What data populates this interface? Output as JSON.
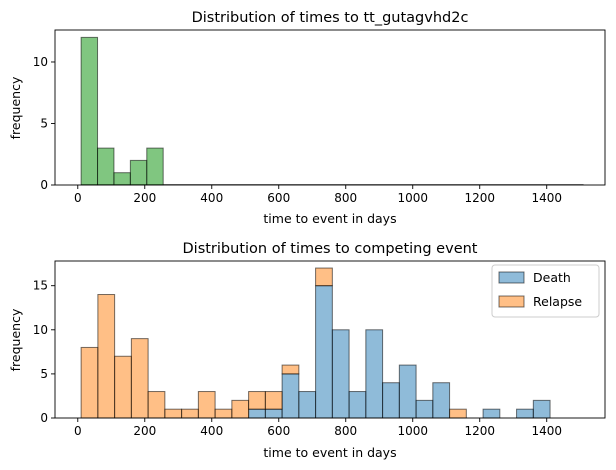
{
  "chart_data": [
    {
      "type": "bar",
      "title": "Distribution of times to tt_gutagvhd2c",
      "xlabel": "time to event in days",
      "ylabel": "frequency",
      "xlim": [
        -68,
        1574
      ],
      "ylim": [
        0,
        12.6
      ],
      "xticks": [
        "0",
        "200",
        "400",
        "600",
        "800",
        "1000",
        "1200",
        "1400"
      ],
      "yticks": [
        "0",
        "5",
        "10"
      ],
      "color": "#2ca02c",
      "bins": [
        {
          "x0": 10,
          "x1": 59,
          "value": 12
        },
        {
          "x0": 59,
          "x1": 108,
          "value": 3
        },
        {
          "x0": 108,
          "x1": 157,
          "value": 1
        },
        {
          "x0": 157,
          "x1": 206,
          "value": 2
        },
        {
          "x0": 206,
          "x1": 255,
          "value": 3
        }
      ],
      "baseline_range": [
        10,
        1510
      ]
    },
    {
      "type": "bar",
      "stacked": true,
      "title": "Distribution of times to competing event",
      "xlabel": "time to event in days",
      "ylabel": "frequency",
      "xlim": [
        -68,
        1574
      ],
      "ylim": [
        0,
        17.8
      ],
      "xticks": [
        "0",
        "200",
        "400",
        "600",
        "800",
        "1000",
        "1200",
        "1400"
      ],
      "yticks": [
        "0",
        "5",
        "10",
        "15"
      ],
      "legend_position": "top-right",
      "bin_start": 10,
      "bin_width": 50,
      "series": [
        {
          "name": "Death",
          "color": "#1f77b4",
          "values": [
            0,
            0,
            0,
            0,
            0,
            0,
            0,
            0,
            0,
            0,
            1,
            1,
            5,
            3,
            15,
            10,
            3,
            10,
            4,
            6,
            2,
            4,
            0,
            0,
            1,
            0,
            1,
            2
          ]
        },
        {
          "name": "Relapse",
          "color": "#ff7f0e",
          "values": [
            8,
            14,
            7,
            9,
            3,
            1,
            1,
            3,
            1,
            2,
            2,
            2,
            1,
            0,
            2,
            0,
            0,
            0,
            0,
            0,
            0,
            0,
            1,
            0,
            0,
            0,
            0,
            0
          ]
        }
      ]
    }
  ]
}
